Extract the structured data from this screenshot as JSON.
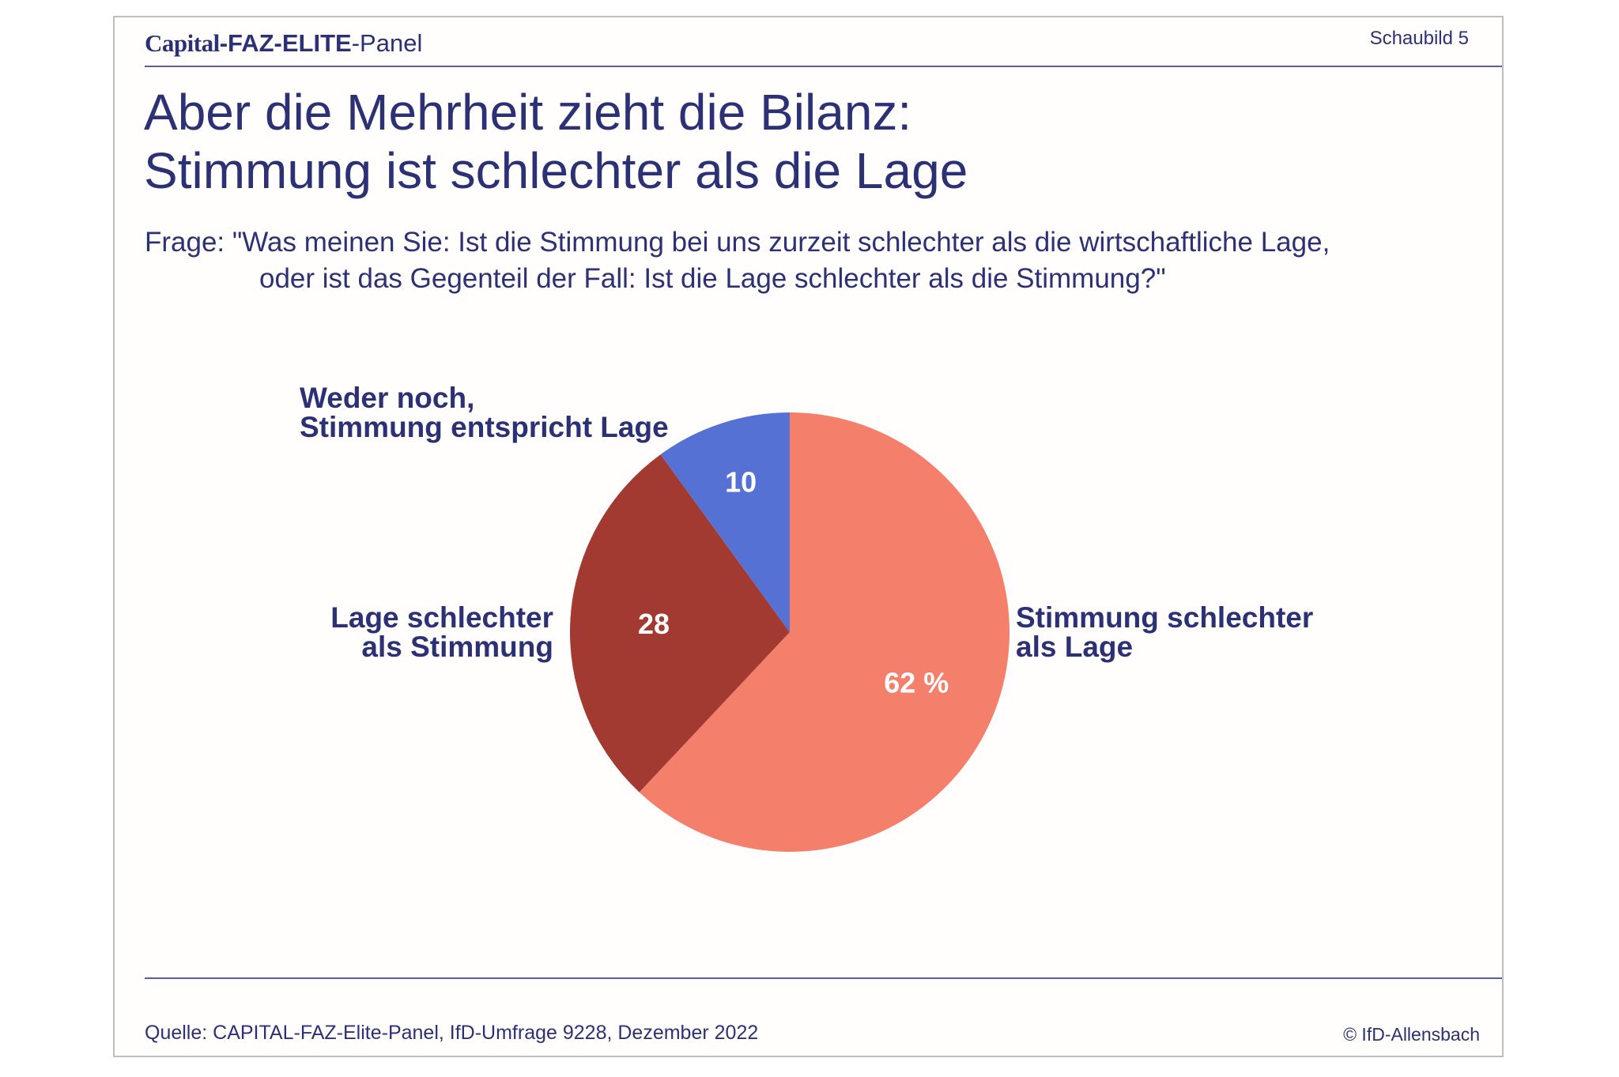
{
  "header": {
    "brand_capital": "Capital",
    "brand_faz": "-FAZ-ELITE",
    "brand_panel": "-Panel",
    "figure_number": "Schaubild 5"
  },
  "title_line1": "Aber die Mehrheit zieht die Bilanz:",
  "title_line2": "Stimmung ist schlechter als die Lage",
  "question_line1": "Frage: \"Was meinen Sie: Ist die Stimmung bei uns zurzeit schlechter als die wirtschaftliche Lage,",
  "question_line2": "oder ist das Gegenteil der Fall: Ist die Lage schlechter als die Stimmung?\"",
  "chart_data": {
    "type": "pie",
    "unit": "%",
    "slices": [
      {
        "label_lines": [
          "Stimmung schlechter",
          "als Lage"
        ],
        "value": 62,
        "value_label": "62 %",
        "color": "#f47f6b"
      },
      {
        "label_lines": [
          "Lage schlechter",
          "als Stimmung"
        ],
        "value": 28,
        "value_label": "28",
        "color": "#a23a32"
      },
      {
        "label_lines": [
          "Weder noch,",
          "Stimmung entspricht Lage"
        ],
        "value": 10,
        "value_label": "10",
        "color": "#5671d4"
      }
    ],
    "start_angle_deg": 0,
    "direction": "clockwise"
  },
  "footer": {
    "source": "Quelle: CAPITAL-FAZ-Elite-Panel, IfD-Umfrage 9228, Dezember 2022",
    "copyright": "© IfD-Allensbach"
  },
  "colors": {
    "text": "#2c3175",
    "rule": "#5a5fa0",
    "slice_label_text": "#ffffff"
  }
}
